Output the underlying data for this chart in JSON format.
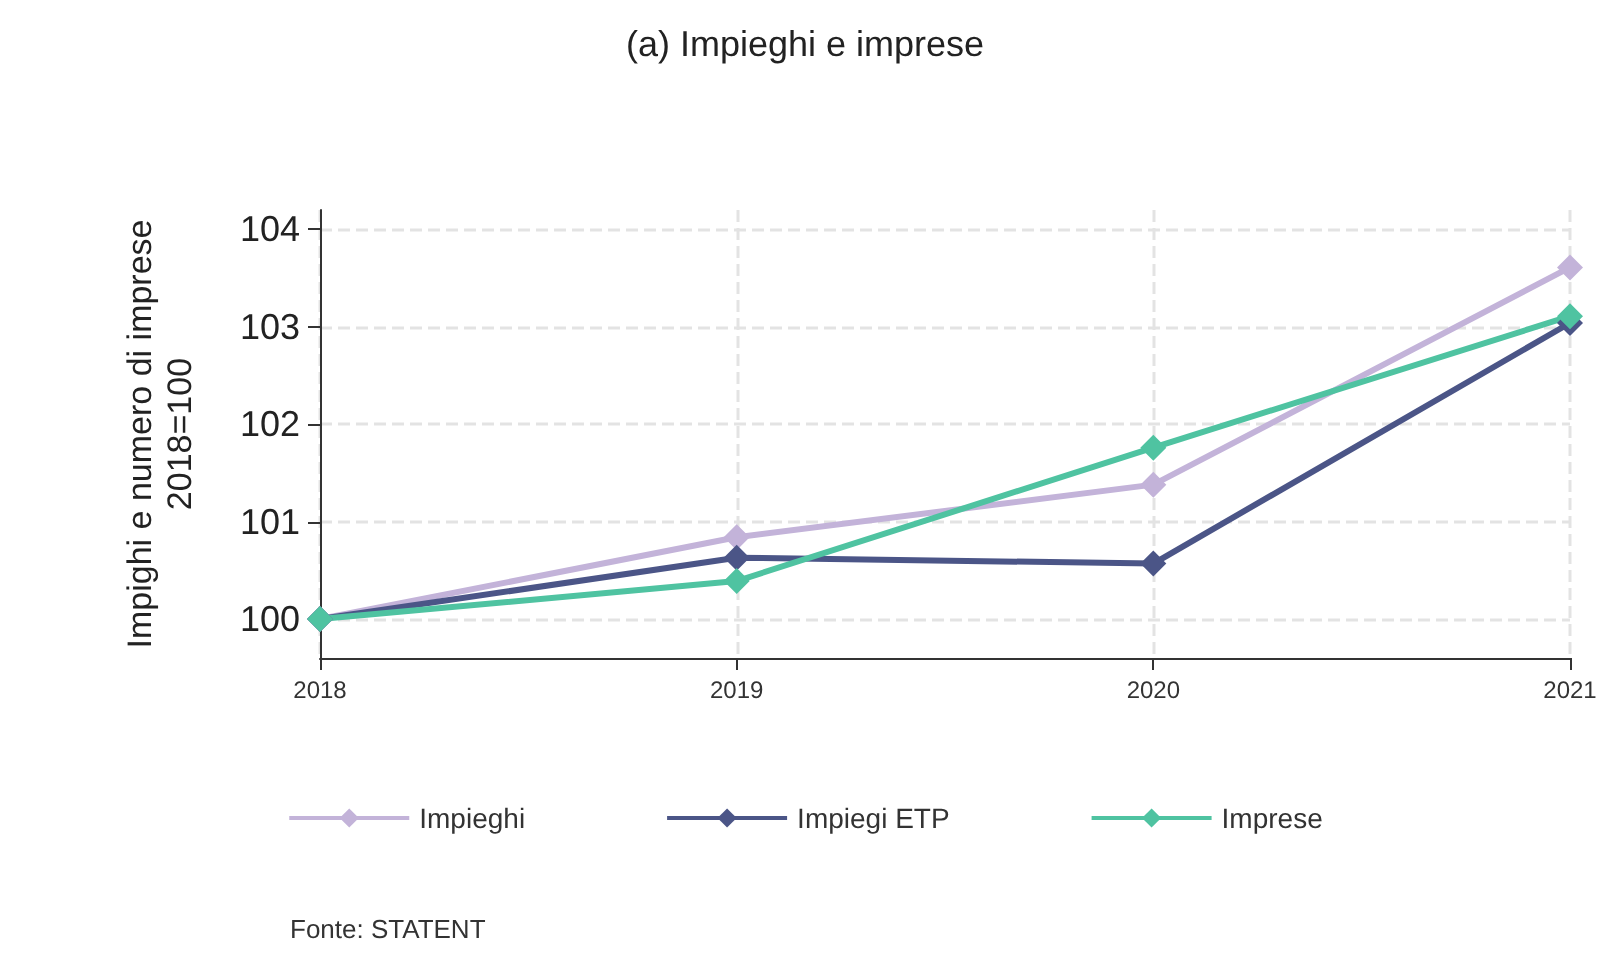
{
  "chart_data": {
    "type": "line",
    "title": "(a) Impieghi e imprese",
    "ylabel": "Impighi e numero di imprese\n2018=100",
    "x": [
      2018,
      2019,
      2020,
      2021
    ],
    "xlim": [
      2018,
      2021
    ],
    "xticks": [
      2018,
      2019,
      2020,
      2021
    ],
    "ylim": [
      99.6,
      104.2
    ],
    "yticks": [
      100,
      101,
      102,
      103,
      104
    ],
    "series": [
      {
        "name": "Impieghi",
        "color": "#c3b3d9",
        "values": [
          100,
          100.84,
          101.38,
          103.61
        ]
      },
      {
        "name": "Impiegi ETP",
        "color": "#4b5587",
        "values": [
          100,
          100.63,
          100.57,
          103.04
        ]
      },
      {
        "name": "Imprese",
        "color": "#4fc3a1",
        "values": [
          100,
          100.39,
          101.76,
          103.11
        ]
      }
    ],
    "marker": "diamond",
    "line_style": "solid",
    "grid": true,
    "legend": "bottom",
    "annotations": [
      "Fonte: STATENT"
    ]
  }
}
